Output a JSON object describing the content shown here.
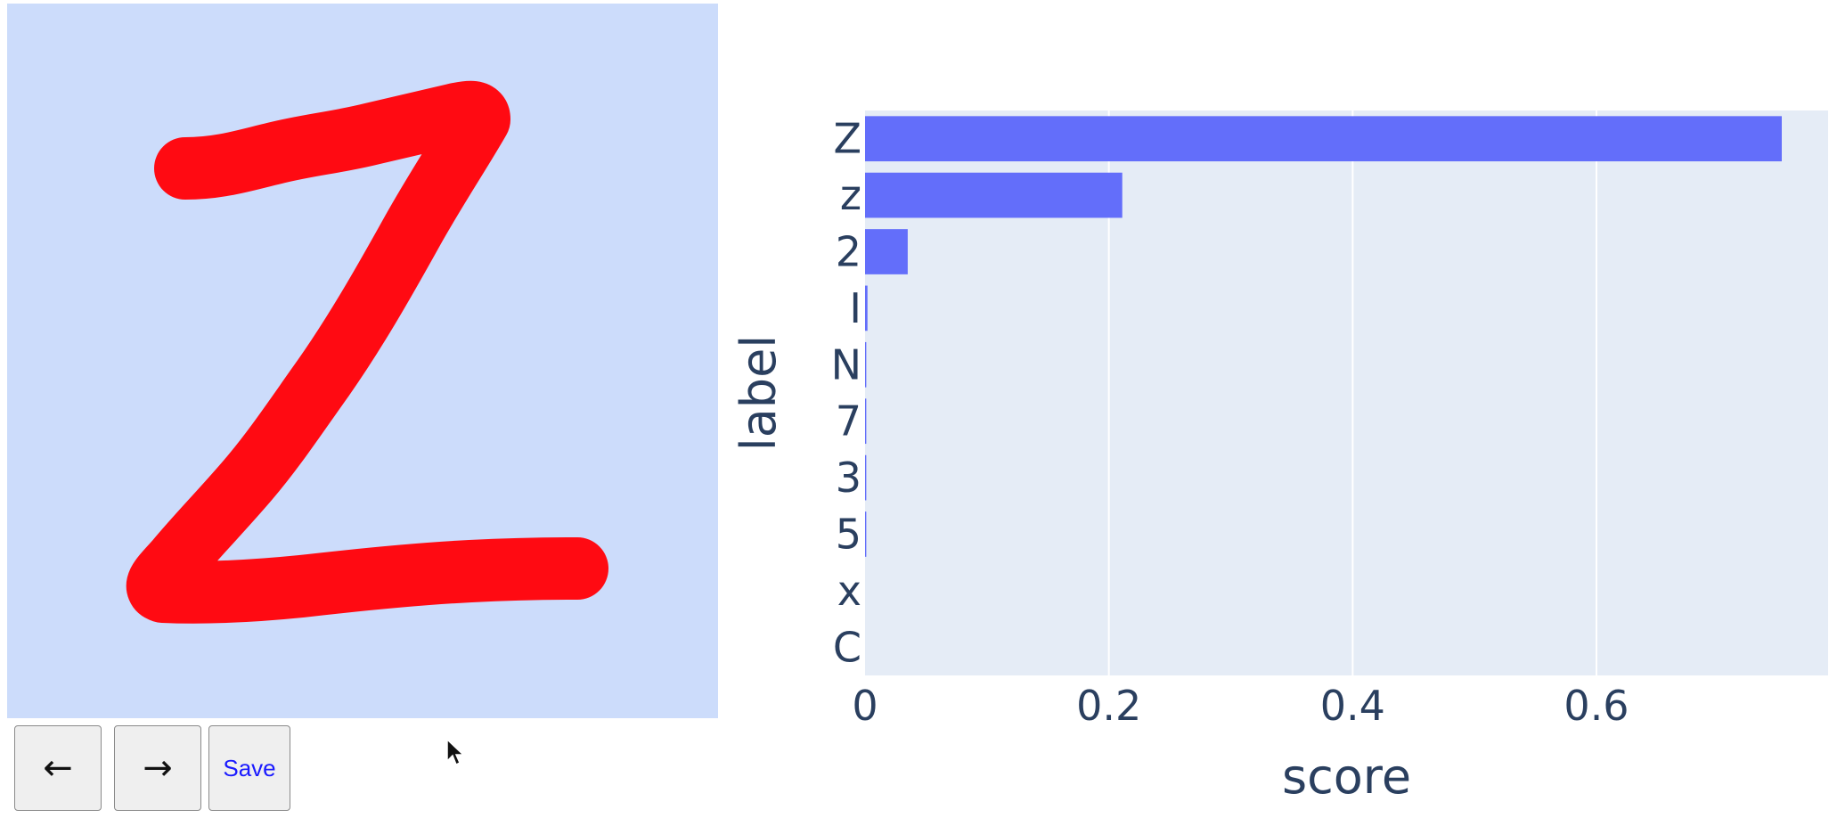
{
  "toolbar": {
    "back_icon": "arrow-left-icon",
    "forward_icon": "arrow-right-icon",
    "save_label": "Save"
  },
  "colors": {
    "canvas_bg": "#ccdcfb",
    "stroke": "#ff0a12",
    "bar": "#636efa",
    "plot_bg": "#e5ecf6",
    "axis_text": "#2a3f5f"
  },
  "chart_data": {
    "type": "bar",
    "orientation": "horizontal",
    "categories": [
      "Z",
      "z",
      "2",
      "I",
      "N",
      "7",
      "3",
      "5",
      "x",
      "C"
    ],
    "values": [
      0.752,
      0.211,
      0.035,
      0.002,
      0.001,
      0.001,
      0.001,
      0.001,
      0.0,
      0.0
    ],
    "xlabel": "score",
    "ylabel": "label",
    "xlim": [
      0,
      0.79
    ],
    "xticks": [
      0,
      0.2,
      0.4,
      0.6
    ],
    "xtick_labels": [
      "0",
      "0.2",
      "0.4",
      "0.6"
    ],
    "grid": true
  }
}
